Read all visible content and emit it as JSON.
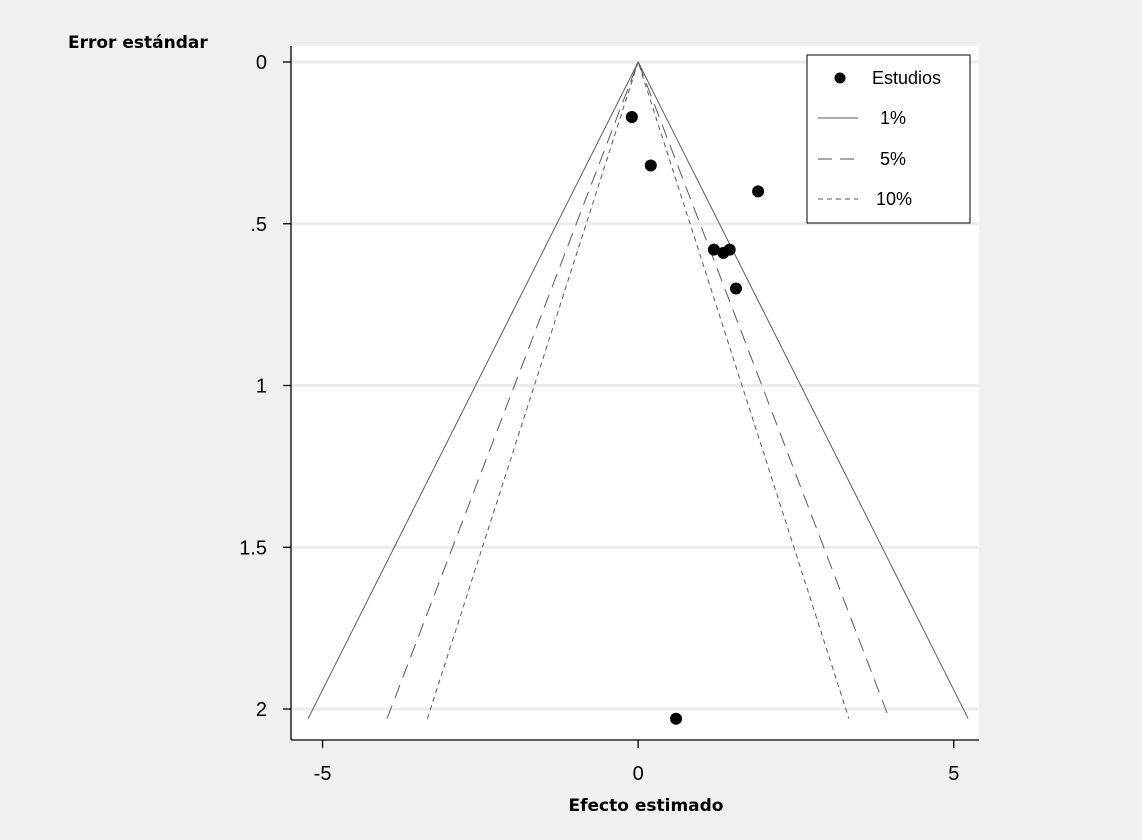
{
  "chart_data": {
    "type": "scatter",
    "ylabel": "Error estándar",
    "xlabel": "Efecto estimado",
    "xlim": [
      -5.5,
      5.4
    ],
    "ylim": [
      0,
      2.08
    ],
    "y_reversed": true,
    "x_ticks": [
      -5,
      0,
      5
    ],
    "x_tick_labels": [
      "-5",
      "0",
      "5"
    ],
    "y_ticks": [
      0,
      0.5,
      1,
      1.5,
      2
    ],
    "y_tick_labels": [
      "0",
      ".5",
      "1",
      "1.5",
      "2"
    ],
    "grid": "horizontal",
    "legend_position": "top-right",
    "series": [
      {
        "name": "Estudios",
        "kind": "points",
        "points": [
          {
            "x": -0.1,
            "y": 0.17
          },
          {
            "x": 0.2,
            "y": 0.32
          },
          {
            "x": 1.9,
            "y": 0.4
          },
          {
            "x": 1.2,
            "y": 0.58
          },
          {
            "x": 1.35,
            "y": 0.59
          },
          {
            "x": 1.45,
            "y": 0.58
          },
          {
            "x": 1.55,
            "y": 0.7
          },
          {
            "x": 0.6,
            "y": 2.03
          }
        ]
      },
      {
        "name": "1%",
        "kind": "contour",
        "dash": "solid",
        "z": 2.576
      },
      {
        "name": "5%",
        "kind": "contour",
        "dash": "long-dash",
        "z": 1.96
      },
      {
        "name": "10%",
        "kind": "contour",
        "dash": "short-dash",
        "z": 1.645
      }
    ]
  }
}
